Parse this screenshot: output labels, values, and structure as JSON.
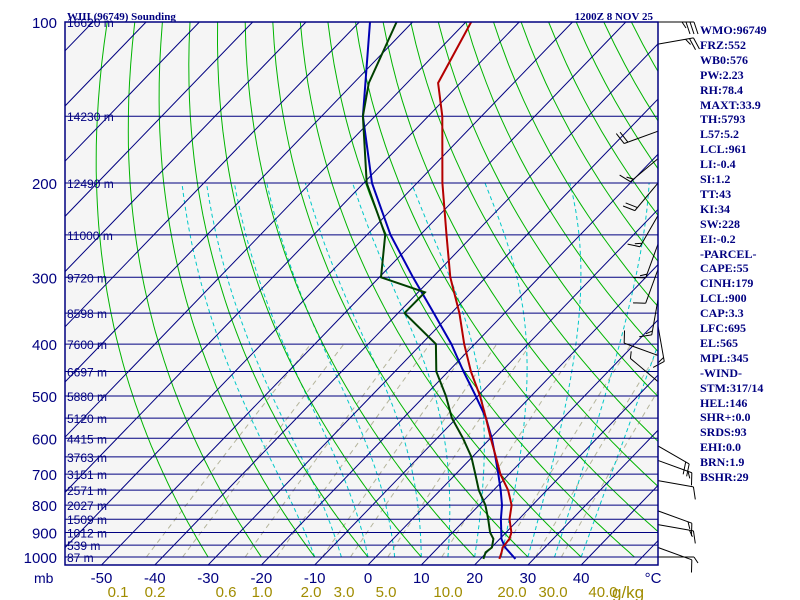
{
  "chart_data": {
    "type": "line",
    "title": "WIII (96749) Sounding",
    "time_label": "1200Z  8 NOV 25",
    "xlabel": "°C",
    "mixing_ratio_unit": "g/kg",
    "pressure_unit_label": "mb",
    "pressure_axis": [
      1000,
      900,
      800,
      700,
      600,
      500,
      400,
      300,
      200,
      100
    ],
    "pressure_tick_labels": [
      "1000",
      "900",
      "800",
      "700",
      "600",
      "500",
      "400",
      "300",
      "200",
      "100"
    ],
    "temperature_ticks": [
      -50,
      -40,
      -30,
      -20,
      -10,
      0,
      10,
      20,
      30,
      40
    ],
    "temperature_tick_labels": [
      "-50",
      "-40",
      "-30",
      "-20",
      "-10",
      "0",
      "10",
      "20",
      "30",
      "40"
    ],
    "mixing_ratio_labels": [
      "0.1",
      "0.2",
      "0.6",
      "1.0",
      "2.0",
      "3.0",
      "5.0",
      "10.0",
      "20.0",
      "30.0",
      "40.0"
    ],
    "height_levels": [
      {
        "p": 100,
        "label": "16620 m"
      },
      {
        "p": 150,
        "label": "14230 m"
      },
      {
        "p": 200,
        "label": "12490 m"
      },
      {
        "p": 250,
        "label": "11000 m"
      },
      {
        "p": 300,
        "label": "9720 m"
      },
      {
        "p": 350,
        "label": "8598 m"
      },
      {
        "p": 400,
        "label": "7600 m"
      },
      {
        "p": 450,
        "label": "6697 m"
      },
      {
        "p": 500,
        "label": "5880 m"
      },
      {
        "p": 550,
        "label": "5120 m"
      },
      {
        "p": 600,
        "label": "4415 m"
      },
      {
        "p": 650,
        "label": "3763 m"
      },
      {
        "p": 700,
        "label": "3151 m"
      },
      {
        "p": 750,
        "label": "2571 m"
      },
      {
        "p": 800,
        "label": "2027 m"
      },
      {
        "p": 850,
        "label": "1509 m"
      },
      {
        "p": 900,
        "label": "1012 m"
      },
      {
        "p": 950,
        "label": "539 m"
      },
      {
        "p": 1000,
        "label": "87 m"
      }
    ],
    "series": [
      {
        "name": "Temperature",
        "color": "#b40000",
        "p": [
          1008,
          980,
          960,
          925,
          900,
          850,
          800,
          750,
          700,
          650,
          600,
          550,
          500,
          450,
          400,
          350,
          300,
          250,
          200,
          150,
          130,
          100
        ],
        "t": [
          25.0,
          24.2,
          23.5,
          23.2,
          22.4,
          19.6,
          17.4,
          14.0,
          9.6,
          5.6,
          1.2,
          -3.4,
          -8.6,
          -14.8,
          -21.1,
          -27.7,
          -36.0,
          -44.5,
          -54.8,
          -67.1,
          -74.0,
          -79.0
        ]
      },
      {
        "name": "Dewpoint",
        "color": "#004000",
        "p": [
          1008,
          980,
          960,
          925,
          900,
          850,
          800,
          750,
          700,
          650,
          600,
          550,
          500,
          450,
          400,
          350,
          320,
          300,
          250,
          200,
          150,
          130,
          100
        ],
        "t": [
          22.0,
          21.2,
          21.5,
          20.2,
          18.4,
          15.6,
          12.5,
          8.5,
          4.9,
          1.0,
          -4.0,
          -9.8,
          -15.0,
          -21.3,
          -26.4,
          -38.0,
          -38.0,
          -49.0,
          -56.0,
          -69.0,
          -82.0,
          -87.0,
          -93.0
        ]
      },
      {
        "name": "Parcel",
        "color": "#0000b4",
        "p": [
          1008,
          960,
          925,
          900,
          850,
          800,
          750,
          700,
          650,
          600,
          550,
          500,
          450,
          400,
          350,
          300,
          250,
          200,
          150,
          100
        ],
        "t": [
          28.0,
          24.0,
          21.7,
          20.5,
          18.0,
          15.6,
          12.6,
          9.2,
          5.5,
          1.4,
          -3.4,
          -9.4,
          -16.2,
          -23.5,
          -32.5,
          -43.0,
          -55.0,
          -68.0,
          -82.0,
          -98.0
        ]
      }
    ],
    "wind_barbs": [
      {
        "p": 100,
        "dir": 90,
        "spd": 35
      },
      {
        "p": 110,
        "dir": 80,
        "spd": 25
      },
      {
        "p": 160,
        "dir": 250,
        "spd": 20
      },
      {
        "p": 180,
        "dir": 230,
        "spd": 15
      },
      {
        "p": 200,
        "dir": 220,
        "spd": 20
      },
      {
        "p": 230,
        "dir": 210,
        "spd": 15
      },
      {
        "p": 260,
        "dir": 200,
        "spd": 15
      },
      {
        "p": 290,
        "dir": 200,
        "spd": 10
      },
      {
        "p": 330,
        "dir": 190,
        "spd": 15
      },
      {
        "p": 370,
        "dir": 170,
        "spd": 15
      },
      {
        "p": 420,
        "dir": 290,
        "spd": 10
      },
      {
        "p": 470,
        "dir": 310,
        "spd": 5
      },
      {
        "p": 620,
        "dir": 120,
        "spd": 20
      },
      {
        "p": 660,
        "dir": 110,
        "spd": 15
      },
      {
        "p": 720,
        "dir": 100,
        "spd": 10
      },
      {
        "p": 820,
        "dir": 110,
        "spd": 15
      },
      {
        "p": 870,
        "dir": 100,
        "spd": 15
      },
      {
        "p": 960,
        "dir": 110,
        "spd": 10
      },
      {
        "p": 1000,
        "dir": 90,
        "spd": 5
      }
    ],
    "indices": [
      "WMO:96749",
      "FRZ:552",
      "WB0:576",
      "PW:2.23",
      "RH:78.4",
      "MAXT:33.9",
      "TH:5793",
      "L57:5.2",
      "LCL:961",
      "LI:-0.4",
      "SI:1.2",
      "TT:43",
      "KI:34",
      "SW:228",
      "EI:-0.2",
      "-PARCEL-",
      "CAPE:55",
      "CINH:179",
      "LCL:900",
      "CAP:3.3",
      "LFC:695",
      "EL:565",
      "MPL:345",
      "-WIND-",
      "STM:317/14",
      "HEL:146",
      "SHR+:0.0",
      "SRDS:93",
      "EHI:0.0",
      "BRN:1.9",
      "BSHR:29"
    ]
  },
  "colors": {
    "frame": "#000080",
    "isobar": "#000080",
    "isotherm": "#000080",
    "dry_adiabat": "#00b400",
    "moist_adiabat": "#00c8c8",
    "mixing_ratio": "#b4b49b",
    "temperature": "#b40000",
    "dewpoint": "#004000",
    "parcel": "#0000b4",
    "height_label": "#000080",
    "mixing_label": "#a08c00",
    "barb": "#000000"
  }
}
